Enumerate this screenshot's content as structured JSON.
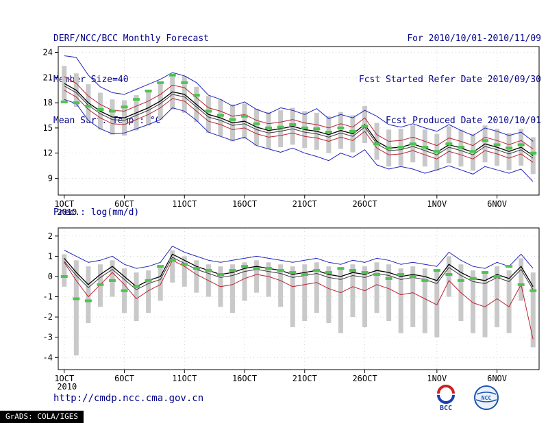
{
  "header": {
    "title": "DERF/NCC/BCC Monthly Forecast",
    "member_size": "Member Size=40",
    "var1_label": "Mean Surf. Temp.: °C",
    "for_range": "For 2010/10/01-2010/11/09",
    "refer_date": "Fcst Started Refer Date 2010/09/30",
    "produced_date": "Fcst Produced Date 2010/10/01"
  },
  "footer": {
    "url": "http://cmdp.ncc.cma.gov.cn",
    "grads_stamp": "GrADS: COLA/IGES",
    "bcc_label": "BCC",
    "ncc_label": "NCC"
  },
  "colors": {
    "header_text": "#00008b",
    "axis": "#000000",
    "grid": "#c4c4c4",
    "bar": "#c9c9c9",
    "max_min": "#2222bb",
    "std": "#bb2233",
    "mean": "#000000",
    "median": "#3a3a3a",
    "obs": "#4cc44c"
  },
  "chart_data": [
    {
      "type": "line",
      "title": "Mean Surf. Temp.: °C",
      "xlabel": "",
      "ylabel": "°C",
      "grid": true,
      "legend_position": "none",
      "x_count": 40,
      "ylim": [
        7.0,
        24.7
      ],
      "yticks": [
        9,
        12,
        15,
        18,
        21,
        24
      ],
      "xticks": [
        {
          "pos": 0,
          "label": "1OCT",
          "sub": "2010"
        },
        {
          "pos": 5,
          "label": "6OCT"
        },
        {
          "pos": 10,
          "label": "11OCT"
        },
        {
          "pos": 15,
          "label": "16OCT"
        },
        {
          "pos": 20,
          "label": "21OCT"
        },
        {
          "pos": 25,
          "label": "26OCT"
        },
        {
          "pos": 31,
          "label": "1NOV"
        },
        {
          "pos": 36,
          "label": "6NOV"
        }
      ],
      "bars": {
        "name": "ensemble-spread",
        "low": [
          18.2,
          17.5,
          15.8,
          14.8,
          14.2,
          14.1,
          14.7,
          15.3,
          16.0,
          17.2,
          16.8,
          15.7,
          14.4,
          14.0,
          13.4,
          13.7,
          12.9,
          12.5,
          12.7,
          13.0,
          12.6,
          12.4,
          12.0,
          12.5,
          12.1,
          13.2,
          11.2,
          10.4,
          10.5,
          10.9,
          10.4,
          9.9,
          10.8,
          10.4,
          9.9,
          10.9,
          10.5,
          10.0,
          10.5,
          9.5
        ],
        "high": [
          22.4,
          21.5,
          20.2,
          19.2,
          18.4,
          18.3,
          18.9,
          19.5,
          20.4,
          21.4,
          21.2,
          19.9,
          18.8,
          18.4,
          17.8,
          17.9,
          17.3,
          16.9,
          17.1,
          17.4,
          17.0,
          16.8,
          16.4,
          16.9,
          16.5,
          17.6,
          15.6,
          14.8,
          14.9,
          15.3,
          14.8,
          14.3,
          15.2,
          14.8,
          14.3,
          15.3,
          14.9,
          14.4,
          14.9,
          13.9
        ]
      },
      "series": [
        {
          "name": "ensemble-max",
          "color": "max_min",
          "style": "line",
          "width": 1,
          "values": [
            23.6,
            23.4,
            21.3,
            19.9,
            19.2,
            19.0,
            19.6,
            20.2,
            20.8,
            21.6,
            21.2,
            20.4,
            18.9,
            18.4,
            17.6,
            18.1,
            17.2,
            16.7,
            17.4,
            17.1,
            16.6,
            17.3,
            16.1,
            16.6,
            16.2,
            17.1,
            16.4,
            15.4,
            15.1,
            15.5,
            15.0,
            14.6,
            15.4,
            14.7,
            14.1,
            15.0,
            14.6,
            14.1,
            14.5,
            13.4
          ]
        },
        {
          "name": "ensemble-min",
          "color": "max_min",
          "style": "line",
          "width": 1,
          "values": [
            18.4,
            17.9,
            15.9,
            14.9,
            14.3,
            14.4,
            14.9,
            15.4,
            16.0,
            17.4,
            17.0,
            15.9,
            14.5,
            14.0,
            13.5,
            13.9,
            12.9,
            12.5,
            12.1,
            12.6,
            12.0,
            11.6,
            11.1,
            12.0,
            11.5,
            12.4,
            10.6,
            10.1,
            10.4,
            10.1,
            9.6,
            10.0,
            10.5,
            10.0,
            9.5,
            10.4,
            10.0,
            9.6,
            10.1,
            8.6
          ]
        },
        {
          "name": "mean-plus-sd",
          "color": "std",
          "style": "line",
          "width": 1,
          "values": [
            21.1,
            20.3,
            18.8,
            17.8,
            17.1,
            17.0,
            17.6,
            18.2,
            19.0,
            20.1,
            19.8,
            18.6,
            17.4,
            17.0,
            16.4,
            16.6,
            15.9,
            15.5,
            15.7,
            16.0,
            15.6,
            15.4,
            15.0,
            15.5,
            15.1,
            16.2,
            14.2,
            13.4,
            13.5,
            13.9,
            13.4,
            12.9,
            13.8,
            13.4,
            12.9,
            13.9,
            13.5,
            13.0,
            13.5,
            12.5
          ]
        },
        {
          "name": "mean-minus-sd",
          "color": "std",
          "style": "line",
          "width": 1,
          "values": [
            19.5,
            18.7,
            17.2,
            16.2,
            15.5,
            15.4,
            16.0,
            16.6,
            17.4,
            18.5,
            18.2,
            17.0,
            15.8,
            15.4,
            14.8,
            15.0,
            14.3,
            13.9,
            14.1,
            14.4,
            14.0,
            13.8,
            13.4,
            13.9,
            13.5,
            14.6,
            12.6,
            11.8,
            11.9,
            12.3,
            11.8,
            11.3,
            12.2,
            11.8,
            11.3,
            12.3,
            11.9,
            11.4,
            11.9,
            10.9
          ]
        },
        {
          "name": "ensemble-median",
          "color": "median",
          "style": "line",
          "width": 1,
          "values": [
            20.0,
            19.2,
            17.7,
            16.7,
            16.0,
            15.9,
            16.5,
            17.1,
            17.9,
            19.0,
            18.7,
            17.5,
            16.3,
            15.9,
            15.3,
            15.5,
            14.8,
            14.4,
            14.6,
            14.9,
            14.5,
            14.3,
            13.9,
            14.4,
            14.0,
            15.1,
            13.1,
            12.3,
            12.4,
            12.8,
            12.3,
            11.8,
            12.7,
            12.3,
            11.8,
            12.8,
            12.4,
            11.9,
            12.4,
            11.4
          ]
        },
        {
          "name": "ensemble-mean",
          "color": "mean",
          "style": "line",
          "width": 1.3,
          "values": [
            20.3,
            19.5,
            18.0,
            17.0,
            16.3,
            16.2,
            16.8,
            17.4,
            18.2,
            19.3,
            19.0,
            17.8,
            16.6,
            16.2,
            15.6,
            15.8,
            15.1,
            14.7,
            14.9,
            15.2,
            14.8,
            14.6,
            14.2,
            14.7,
            14.3,
            15.4,
            13.4,
            12.6,
            12.7,
            13.1,
            12.6,
            12.1,
            13.0,
            12.6,
            12.1,
            13.1,
            12.7,
            12.2,
            12.7,
            11.7
          ]
        },
        {
          "name": "observation",
          "color": "obs",
          "style": "segments",
          "width": 4,
          "values": [
            18.1,
            18.0,
            17.6,
            17.2,
            17.0,
            17.5,
            18.4,
            19.4,
            20.4,
            21.3,
            20.4,
            18.9,
            17.0,
            16.5,
            16.0,
            16.4,
            15.5,
            15.0,
            15.1,
            15.4,
            15.0,
            14.9,
            14.5,
            15.0,
            14.6,
            15.2,
            13.1,
            12.6,
            12.7,
            13.1,
            12.7,
            12.2,
            13.1,
            12.7,
            12.2,
            13.5,
            13.0,
            12.6,
            13.0,
            12.0
          ]
        }
      ]
    },
    {
      "type": "line",
      "title": "Prec.: log(mm/d)",
      "xlabel": "",
      "ylabel": "log(mm/d)",
      "grid": true,
      "legend_position": "none",
      "x_count": 40,
      "ylim": [
        -4.6,
        2.4
      ],
      "yticks": [
        -4,
        -3,
        -2,
        -1,
        0,
        1,
        2
      ],
      "xticks": [
        {
          "pos": 0,
          "label": "1OCT",
          "sub": "2010"
        },
        {
          "pos": 5,
          "label": "6OCT"
        },
        {
          "pos": 10,
          "label": "11OCT"
        },
        {
          "pos": 15,
          "label": "16OCT"
        },
        {
          "pos": 20,
          "label": "21OCT"
        },
        {
          "pos": 25,
          "label": "26OCT"
        },
        {
          "pos": 31,
          "label": "1NOV"
        },
        {
          "pos": 36,
          "label": "6NOV"
        }
      ],
      "bars": {
        "name": "ensemble-spread",
        "low": [
          -0.5,
          -3.9,
          -2.3,
          -1.5,
          -1.0,
          -1.8,
          -2.2,
          -1.8,
          -1.2,
          -0.3,
          -0.5,
          -0.8,
          -1.0,
          -1.5,
          -1.8,
          -1.2,
          -0.8,
          -1.0,
          -1.5,
          -2.5,
          -2.2,
          -1.8,
          -2.3,
          -2.8,
          -2.0,
          -2.5,
          -1.8,
          -2.2,
          -2.8,
          -2.5,
          -2.8,
          -3.0,
          -1.0,
          -2.2,
          -2.8,
          -3.0,
          -2.5,
          -2.8,
          -1.2,
          -3.5
        ],
        "high": [
          1.1,
          0.8,
          0.5,
          0.6,
          0.8,
          0.4,
          0.2,
          0.3,
          0.5,
          1.3,
          1.0,
          0.8,
          0.6,
          0.5,
          0.6,
          0.7,
          0.8,
          0.7,
          0.6,
          0.5,
          0.6,
          0.7,
          0.5,
          0.4,
          0.6,
          0.5,
          0.7,
          0.6,
          0.4,
          0.5,
          0.4,
          0.3,
          1.0,
          0.6,
          0.3,
          0.2,
          0.5,
          0.3,
          0.9,
          0.2
        ]
      },
      "series": [
        {
          "name": "ensemble-max",
          "color": "max_min",
          "style": "line",
          "width": 1,
          "values": [
            1.3,
            1.0,
            0.7,
            0.8,
            1.0,
            0.6,
            0.4,
            0.5,
            0.7,
            1.5,
            1.2,
            1.0,
            0.8,
            0.7,
            0.8,
            0.9,
            1.0,
            0.9,
            0.8,
            0.7,
            0.8,
            0.9,
            0.7,
            0.6,
            0.8,
            0.7,
            0.9,
            0.8,
            0.6,
            0.7,
            0.6,
            0.5,
            1.2,
            0.8,
            0.5,
            0.4,
            0.7,
            0.5,
            1.1,
            0.4
          ]
        },
        {
          "name": "mean-minus-sd",
          "color": "std",
          "style": "line",
          "width": 1,
          "values": [
            0.7,
            -0.2,
            -1.0,
            -0.4,
            0.2,
            -0.4,
            -1.1,
            -0.7,
            -0.4,
            0.8,
            0.5,
            0.1,
            -0.2,
            -0.5,
            -0.4,
            -0.1,
            0.1,
            0.0,
            -0.2,
            -0.5,
            -0.4,
            -0.3,
            -0.6,
            -0.8,
            -0.5,
            -0.7,
            -0.4,
            -0.6,
            -0.9,
            -0.8,
            -1.1,
            -1.4,
            -0.2,
            -0.8,
            -1.3,
            -1.5,
            -1.1,
            -1.5,
            -0.4,
            -3.1
          ]
        },
        {
          "name": "ensemble-median",
          "color": "median",
          "style": "line",
          "width": 1,
          "values": [
            0.75,
            0.05,
            -0.55,
            -0.05,
            0.35,
            -0.15,
            -0.65,
            -0.35,
            -0.15,
            0.95,
            0.65,
            0.35,
            0.15,
            -0.05,
            0.05,
            0.25,
            0.35,
            0.25,
            0.15,
            -0.05,
            0.05,
            0.15,
            -0.05,
            -0.15,
            0.05,
            -0.05,
            0.15,
            0.05,
            -0.15,
            -0.05,
            -0.15,
            -0.35,
            0.45,
            0.05,
            -0.25,
            -0.35,
            -0.05,
            -0.25,
            0.35,
            -0.65
          ]
        },
        {
          "name": "ensemble-mean",
          "color": "mean",
          "style": "line",
          "width": 1.3,
          "values": [
            0.9,
            0.2,
            -0.4,
            0.1,
            0.5,
            0.0,
            -0.5,
            -0.2,
            0.0,
            1.1,
            0.8,
            0.5,
            0.3,
            0.1,
            0.2,
            0.4,
            0.5,
            0.4,
            0.3,
            0.1,
            0.2,
            0.3,
            0.1,
            0.0,
            0.2,
            0.1,
            0.3,
            0.2,
            0.0,
            0.1,
            0.0,
            -0.2,
            0.6,
            0.2,
            -0.1,
            -0.2,
            0.1,
            -0.1,
            0.5,
            -0.5
          ]
        },
        {
          "name": "observation",
          "color": "obs",
          "style": "segments",
          "width": 4,
          "values": [
            0.0,
            -1.1,
            -1.2,
            -0.4,
            -0.2,
            -0.7,
            -0.5,
            -0.2,
            0.5,
            0.8,
            0.6,
            0.4,
            0.3,
            0.1,
            0.3,
            0.5,
            0.4,
            0.4,
            0.3,
            0.2,
            0.1,
            0.3,
            0.2,
            0.4,
            0.3,
            0.2,
            0.1,
            -0.1,
            0.1,
            0.0,
            -0.2,
            0.3,
            0.1,
            -0.2,
            -0.1,
            0.2,
            0.0,
            0.5,
            -0.4,
            -0.7
          ]
        }
      ]
    }
  ]
}
